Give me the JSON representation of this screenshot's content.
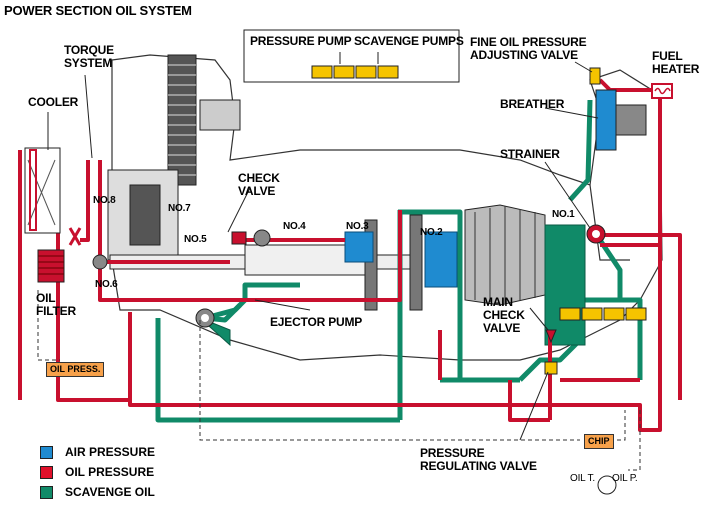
{
  "title": "POWER SECTION OIL SYSTEM",
  "pump_header": {
    "pressure_pump": "PRESSURE PUMP",
    "scavenge_pumps": "SCAVENGE PUMPS"
  },
  "labels": {
    "torque_system": "TORQUE\nSYSTEM",
    "cooler": "COOLER",
    "oil_filter": "OIL\nFILTER",
    "check_valve": "CHECK\nVALVE",
    "fine_oil": "FINE OIL PRESSURE\nADJUSTING VALVE",
    "fuel_heater": "FUEL\nHEATER",
    "breather": "BREATHER",
    "strainer": "STRAINER",
    "ejector_pump": "EJECTOR PUMP",
    "main_check_valve": "MAIN\nCHECK\nVALVE",
    "pressure_regulating_valve": "PRESSURE\nREGULATING VALVE"
  },
  "bearings": {
    "no1": "NO.1",
    "no2": "NO.2",
    "no3": "NO.3",
    "no4": "NO.4",
    "no5": "NO.5",
    "no6": "NO.6",
    "no7": "NO.7",
    "no8": "NO.8"
  },
  "boxes": {
    "oil_press": "OIL PRESS.",
    "chip": "CHIP"
  },
  "gauges": {
    "oil_t": "OIL T.",
    "oil_p": "OIL P."
  },
  "legend": [
    {
      "label": "AIR PRESSURE",
      "color": "#1f8bd0"
    },
    {
      "label": "OIL PRESSURE",
      "color": "#e0102a"
    },
    {
      "label": "SCAVENGE OIL",
      "color": "#108a68"
    }
  ],
  "colors": {
    "oil_pressure": "#c8102e",
    "scavenge": "#108a68",
    "air": "#1f8bd0",
    "box_fill": "#f7a14a"
  }
}
